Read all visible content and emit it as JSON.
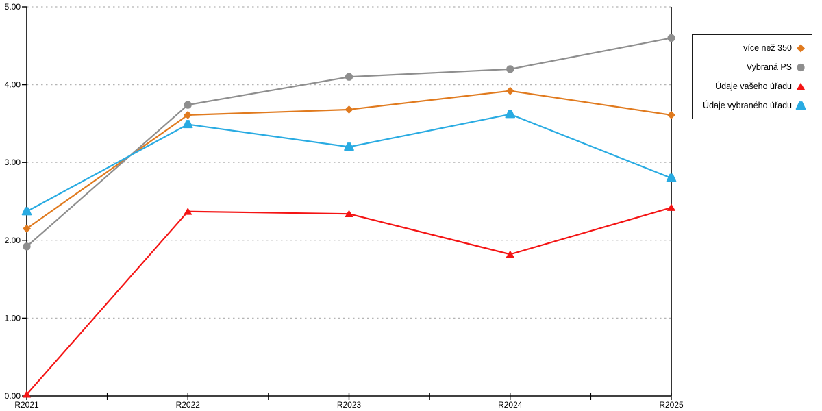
{
  "chart_data": {
    "type": "line",
    "title": "",
    "xlabel": "",
    "ylabel": "",
    "categories": [
      "R2021",
      "R2022",
      "R2023",
      "R2024",
      "R2025"
    ],
    "series": [
      {
        "name": "více než 350",
        "color": "#E07A1E",
        "marker": "diamond",
        "values": [
          2.15,
          3.61,
          3.68,
          3.92,
          3.61
        ]
      },
      {
        "name": "Vybraná PS",
        "color": "#8E8E8E",
        "marker": "circle",
        "values": [
          1.92,
          3.74,
          4.1,
          4.2,
          4.6
        ]
      },
      {
        "name": "Údaje vašeho úřadu",
        "color": "#F41414",
        "marker": "triangle",
        "values": [
          0.02,
          2.37,
          2.34,
          1.82,
          2.42
        ]
      },
      {
        "name": "Údaje vybraného úřadu",
        "color": "#29ABE2",
        "marker": "triangle-rounded",
        "values": [
          2.37,
          3.49,
          3.2,
          3.62,
          2.8
        ]
      }
    ],
    "ylim": [
      0,
      5
    ],
    "yticks": [
      0,
      1,
      2,
      3,
      4,
      5
    ],
    "ytick_labels": [
      "0.00",
      "1.00",
      "2.00",
      "3.00",
      "4.00",
      "5.00"
    ],
    "grid": "horizontal dashed gridlines at 1.00-5.00",
    "x_minor_ticks": "midpoints between categories",
    "legend_position": "outside-right-top",
    "axis_color": "#000000",
    "grid_color": "#b4b4b4",
    "background_color": "#ffffff"
  }
}
